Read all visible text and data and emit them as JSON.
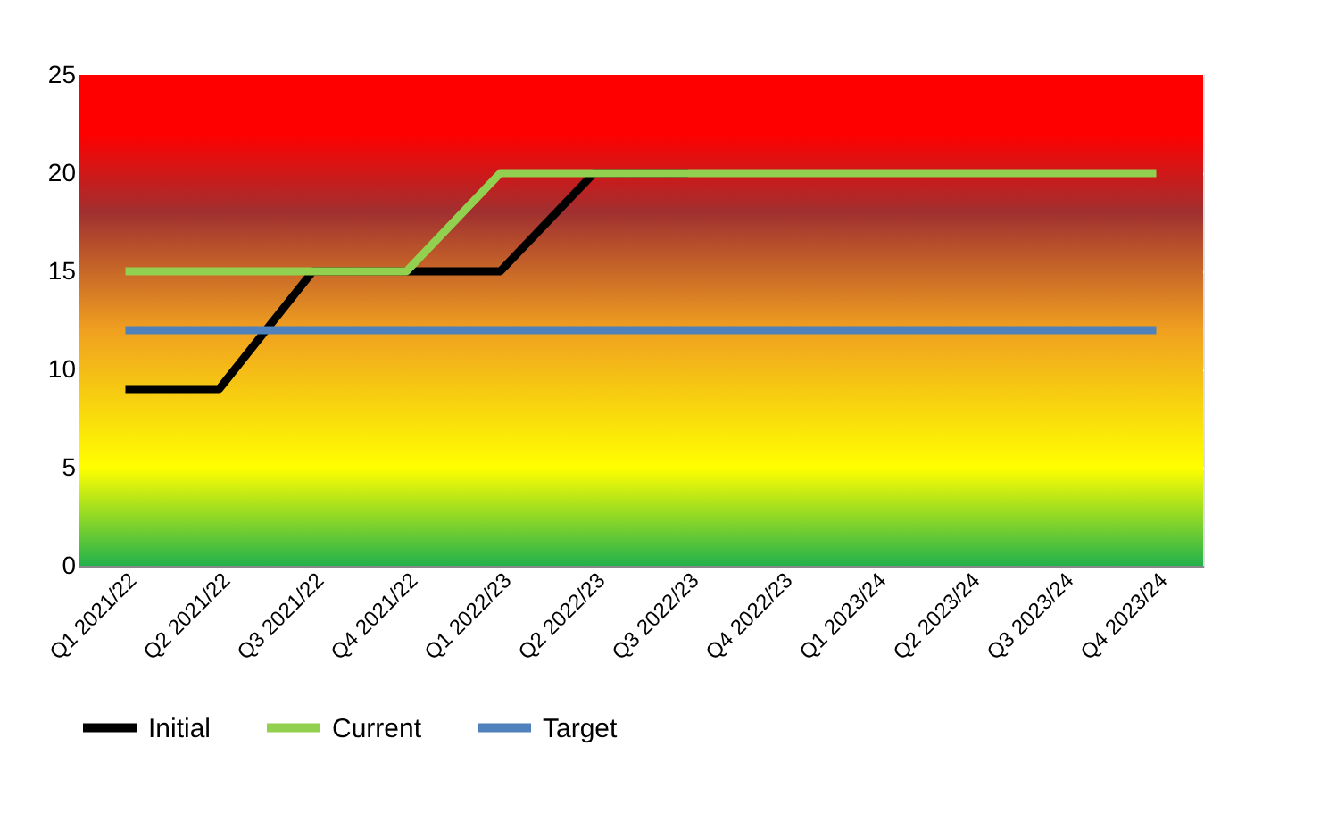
{
  "chart_data": {
    "type": "line",
    "categories": [
      "Q1 2021/22",
      "Q2 2021/22",
      "Q3 2021/22",
      "Q4 2021/22",
      "Q1 2022/23",
      "Q2 2022/23",
      "Q3 2022/23",
      "Q4 2022/23",
      "Q1 2023/24",
      "Q2 2023/24",
      "Q3 2023/24",
      "Q4 2023/24"
    ],
    "series": [
      {
        "name": "Initial",
        "color": "#000000",
        "values": [
          9,
          9,
          15,
          15,
          15,
          20,
          20,
          null,
          null,
          null,
          null,
          null
        ]
      },
      {
        "name": "Current",
        "color": "#92d050",
        "values": [
          15,
          15,
          15,
          15,
          20,
          20,
          20,
          20,
          20,
          20,
          20,
          20
        ]
      },
      {
        "name": "Target",
        "color": "#4f81bd",
        "values": [
          12,
          12,
          12,
          12,
          12,
          12,
          12,
          12,
          12,
          12,
          12,
          12
        ]
      }
    ],
    "bands": [
      {
        "axis": "y",
        "from": 0,
        "to": 5,
        "color": "#22b14c"
      },
      {
        "axis": "y",
        "from": 5,
        "to": 12,
        "color": "#ffff00"
      },
      {
        "axis": "y",
        "from": 12,
        "to": 18,
        "color": "#f0a020"
      },
      {
        "axis": "y",
        "from": 18,
        "to": 22,
        "color": "#a03030"
      },
      {
        "axis": "y",
        "from": 22,
        "to": 25,
        "color": "#ff0000"
      }
    ],
    "ylim": [
      0,
      25
    ],
    "yticks": [
      0,
      5,
      10,
      15,
      20,
      25
    ],
    "grid": "y",
    "legend": "bottom",
    "line_style": "solid",
    "marker": "none"
  }
}
